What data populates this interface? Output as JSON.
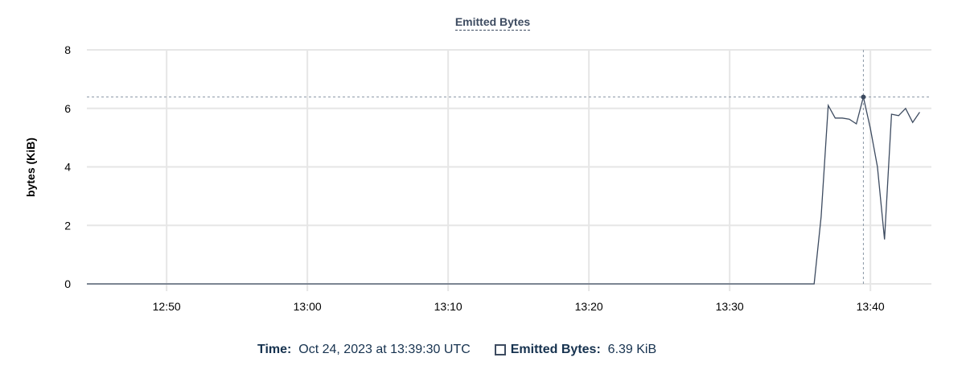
{
  "chart_data": {
    "type": "line",
    "title": "Emitted Bytes",
    "ylabel": "bytes (KiB)",
    "xlabel": "",
    "ylim": [
      0,
      8
    ],
    "yticks": [
      "0",
      "2",
      "4",
      "6",
      "8"
    ],
    "xlim": [
      "12:44:20",
      "13:44:20"
    ],
    "xticks": [
      "12:50",
      "13:00",
      "13:10",
      "13:20",
      "13:30",
      "13:40"
    ],
    "grid": true,
    "color": "#3d4b60",
    "series": [
      {
        "name": "Emitted Bytes",
        "x": [
          "12:44:20",
          "13:36:00",
          "13:36:30",
          "13:37:00",
          "13:37:30",
          "13:38:00",
          "13:38:30",
          "13:39:00",
          "13:39:30",
          "13:40:00",
          "13:40:30",
          "13:41:00",
          "13:41:30",
          "13:42:00",
          "13:42:30",
          "13:43:00",
          "13:43:30"
        ],
        "values": [
          0,
          0,
          2.3,
          6.1,
          5.67,
          5.67,
          5.63,
          5.47,
          6.39,
          5.3,
          4.0,
          1.52,
          5.8,
          5.75,
          6.0,
          5.52,
          5.87
        ]
      }
    ],
    "hover": {
      "x": "13:39:30",
      "value": 6.39
    }
  },
  "legend": {
    "time_label": "Time:",
    "time_value": "Oct 24, 2023 at 13:39:30 UTC",
    "series_label": "Emitted Bytes:",
    "series_value": "6.39 KiB"
  }
}
